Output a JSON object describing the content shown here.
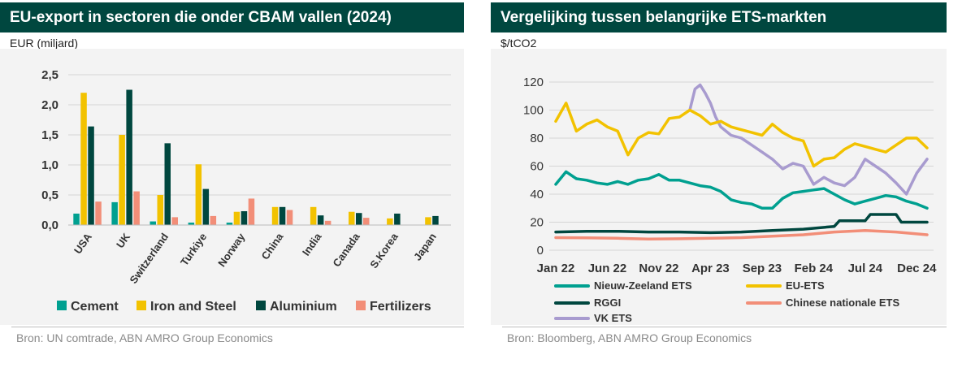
{
  "chart_data": [
    {
      "type": "bar",
      "title": "EU-export in sectoren die onder CBAM vallen (2024)",
      "ylabel": "EUR (miljard)",
      "xlabel": "",
      "ylim": [
        0,
        2.5
      ],
      "yticks": [
        "0,0",
        "0,5",
        "1,0",
        "1,5",
        "2,0",
        "2,5"
      ],
      "categories": [
        "USA",
        "UK",
        "Switzerland",
        "Turkiye",
        "Norway",
        "China",
        "India",
        "Canada",
        "S.Korea",
        "Japan"
      ],
      "series": [
        {
          "name": "Cement",
          "color": "#00a090",
          "values": [
            0.19,
            0.38,
            0.06,
            0.04,
            0.04,
            0.0,
            0.0,
            0.0,
            0.0,
            0.0
          ]
        },
        {
          "name": "Iron and Steel",
          "color": "#f2c200",
          "values": [
            2.2,
            1.5,
            0.5,
            1.01,
            0.22,
            0.3,
            0.3,
            0.22,
            0.11,
            0.13
          ]
        },
        {
          "name": "Aluminium",
          "color": "#00473f",
          "values": [
            1.64,
            2.25,
            1.36,
            0.6,
            0.23,
            0.3,
            0.16,
            0.2,
            0.19,
            0.15
          ]
        },
        {
          "name": "Fertilizers",
          "color": "#f28e78",
          "values": [
            0.39,
            0.56,
            0.13,
            0.15,
            0.44,
            0.25,
            0.07,
            0.12,
            0.0,
            0.0
          ]
        }
      ],
      "legend": "bottom",
      "source": "Bron: UN comtrade, ABN AMRO Group Economics"
    },
    {
      "type": "line",
      "title": "Vergelijking tussen belangrijke ETS-markten",
      "ylabel": "$/tCO2",
      "xlabel": "",
      "xlim": [
        0,
        36
      ],
      "xtick_positions": [
        0,
        5,
        10,
        15,
        20,
        25,
        30,
        35
      ],
      "xticks": [
        "Jan 22",
        "Jun 22",
        "Nov 22",
        "Apr 23",
        "Sep 23",
        "Feb 24",
        "Jul 24",
        "Dec 24"
      ],
      "ylim": [
        0,
        120
      ],
      "yticks": [
        "0",
        "20",
        "40",
        "60",
        "80",
        "100",
        "120"
      ],
      "series": [
        {
          "name": "Nieuw-Zeeland ETS",
          "color": "#00a090",
          "x": [
            0,
            1,
            2,
            3,
            4,
            5,
            6,
            7,
            8,
            9,
            10,
            11,
            12,
            13,
            14,
            15,
            16,
            17,
            18,
            19,
            20,
            21,
            22,
            23,
            24,
            25,
            26,
            27,
            28,
            29,
            30,
            31,
            32,
            33,
            34,
            35,
            36
          ],
          "values": [
            47,
            56,
            51,
            50,
            48,
            47,
            49,
            47,
            50,
            51,
            54,
            50,
            50,
            48,
            46,
            45,
            42,
            36,
            34,
            33,
            30,
            30,
            37,
            41,
            42,
            43,
            44,
            40,
            36,
            33,
            35,
            37,
            39,
            38,
            35,
            33,
            30
          ]
        },
        {
          "name": "EU-ETS",
          "color": "#f2c200",
          "x": [
            0,
            1,
            2,
            3,
            4,
            5,
            6,
            7,
            8,
            9,
            10,
            11,
            12,
            13,
            14,
            15,
            16,
            17,
            18,
            19,
            20,
            21,
            22,
            23,
            24,
            25,
            26,
            27,
            28,
            29,
            30,
            31,
            32,
            33,
            34,
            35,
            36
          ],
          "values": [
            92,
            105,
            85,
            90,
            93,
            88,
            85,
            68,
            80,
            84,
            83,
            94,
            95,
            100,
            96,
            90,
            92,
            88,
            86,
            84,
            82,
            90,
            84,
            80,
            78,
            60,
            65,
            66,
            72,
            76,
            74,
            72,
            70,
            75,
            80,
            80,
            73
          ]
        },
        {
          "name": "RGGI",
          "color": "#00473f",
          "x": [
            0,
            3,
            6,
            9,
            12,
            15,
            18,
            21,
            24,
            27,
            27.5,
            30,
            30.5,
            33,
            33.5,
            36
          ],
          "values": [
            13,
            13.5,
            13.5,
            13,
            13,
            12.5,
            13,
            14,
            15,
            17,
            21,
            21,
            25.5,
            25.5,
            20,
            20
          ]
        },
        {
          "name": "Chinese nationale ETS",
          "color": "#f28e78",
          "x": [
            0,
            3,
            6,
            9,
            12,
            15,
            18,
            21,
            24,
            27,
            30,
            33,
            36
          ],
          "values": [
            9,
            8.8,
            8.5,
            8,
            8.2,
            8.5,
            9,
            10,
            11,
            13,
            14,
            13,
            11
          ]
        },
        {
          "name": "VK ETS",
          "color": "#a89bcf",
          "x": [
            13,
            13.5,
            14,
            14.5,
            15,
            15.5,
            16,
            17,
            18,
            19,
            20,
            21,
            22,
            23,
            24,
            25,
            26,
            27,
            28,
            29,
            30,
            31,
            32,
            33,
            34,
            35,
            36
          ],
          "values": [
            100,
            115,
            118,
            112,
            105,
            95,
            88,
            82,
            80,
            75,
            70,
            65,
            58,
            62,
            60,
            47,
            52,
            48,
            46,
            52,
            65,
            60,
            55,
            48,
            40,
            55,
            65
          ]
        }
      ],
      "legend": "bottom",
      "source": "Bron: Bloomberg, ABN AMRO Group Economics"
    }
  ]
}
